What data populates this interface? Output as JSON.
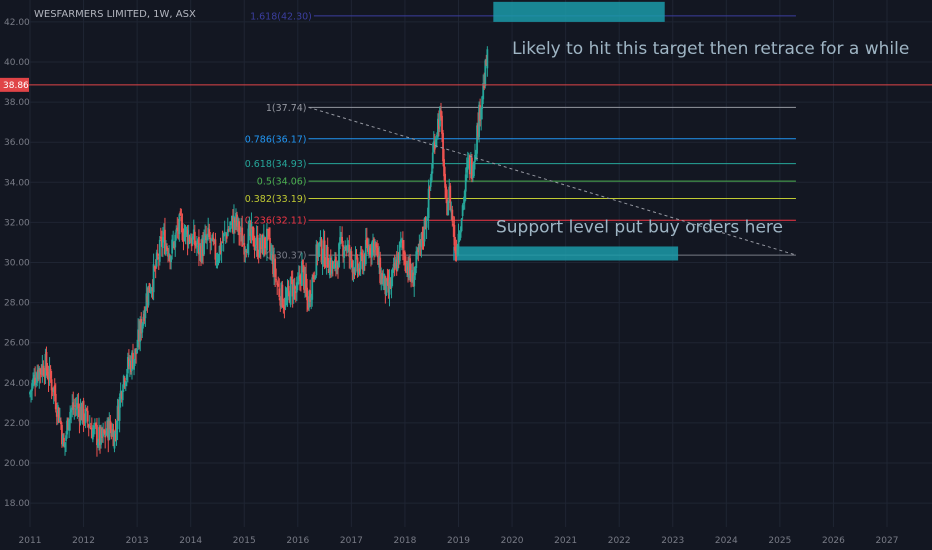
{
  "chart_data": {
    "type": "candlestick",
    "title": "WESFARMERS LIMITED, 1W, ASX",
    "y_range": [
      17.3,
      43.3
    ],
    "y_ticks": [
      "18.00",
      "20.00",
      "22.00",
      "24.00",
      "26.00",
      "28.00",
      "30.00",
      "32.00",
      "34.00",
      "36.00",
      "38.00",
      "40.00",
      "42.00"
    ],
    "x_range": [
      2011.0,
      2027.7
    ],
    "x_ticks": [
      "2011",
      "2012",
      "2013",
      "2014",
      "2015",
      "2016",
      "2017",
      "2018",
      "2019",
      "2020",
      "2021",
      "2022",
      "2023",
      "2024",
      "2025",
      "2026",
      "2027"
    ],
    "price_line": {
      "value": 38.86,
      "label": "38.86",
      "color": "#e04447"
    },
    "path": [
      [
        2011.0,
        23.4
      ],
      [
        2011.15,
        24.6
      ],
      [
        2011.3,
        24.9
      ],
      [
        2011.45,
        23.8
      ],
      [
        2011.6,
        21.9
      ],
      [
        2011.65,
        20.6
      ],
      [
        2011.75,
        22.6
      ],
      [
        2011.9,
        22.8
      ],
      [
        2012.05,
        22.3
      ],
      [
        2012.2,
        21.6
      ],
      [
        2012.35,
        21.1
      ],
      [
        2012.5,
        21.8
      ],
      [
        2012.6,
        21.4
      ],
      [
        2012.75,
        24.2
      ],
      [
        2012.85,
        24.8
      ],
      [
        2013.0,
        25.5
      ],
      [
        2013.2,
        28.4
      ],
      [
        2013.35,
        29.5
      ],
      [
        2013.5,
        31.2
      ],
      [
        2013.65,
        30.5
      ],
      [
        2013.8,
        31.8
      ],
      [
        2014.0,
        31.3
      ],
      [
        2014.2,
        30.6
      ],
      [
        2014.35,
        31.2
      ],
      [
        2014.5,
        30.3
      ],
      [
        2014.7,
        31.6
      ],
      [
        2014.85,
        32.1
      ],
      [
        2015.0,
        31.0
      ],
      [
        2015.15,
        31.3
      ],
      [
        2015.3,
        30.7
      ],
      [
        2015.45,
        31.1
      ],
      [
        2015.55,
        30.0
      ],
      [
        2015.65,
        28.7
      ],
      [
        2015.8,
        27.9
      ],
      [
        2015.9,
        28.9
      ],
      [
        2016.0,
        28.4
      ],
      [
        2016.1,
        29.8
      ],
      [
        2016.2,
        27.9
      ],
      [
        2016.3,
        29.3
      ],
      [
        2016.4,
        30.8
      ],
      [
        2016.55,
        30.3
      ],
      [
        2016.7,
        29.6
      ],
      [
        2016.8,
        30.6
      ],
      [
        2016.9,
        31.0
      ],
      [
        2017.0,
        30.2
      ],
      [
        2017.15,
        29.6
      ],
      [
        2017.3,
        30.6
      ],
      [
        2017.45,
        31.1
      ],
      [
        2017.55,
        29.5
      ],
      [
        2017.7,
        28.4
      ],
      [
        2017.8,
        29.3
      ],
      [
        2017.95,
        30.9
      ],
      [
        2018.05,
        30.0
      ],
      [
        2018.15,
        29.1
      ],
      [
        2018.3,
        30.6
      ],
      [
        2018.45,
        32.8
      ],
      [
        2018.52,
        34.8
      ],
      [
        2018.57,
        36.2
      ],
      [
        2018.62,
        36.8
      ],
      [
        2018.67,
        37.4
      ],
      [
        2018.73,
        35.5
      ],
      [
        2018.78,
        32.5
      ],
      [
        2018.84,
        33.5
      ],
      [
        2018.9,
        32.3
      ],
      [
        2018.96,
        30.6
      ],
      [
        2019.04,
        31.8
      ],
      [
        2019.12,
        33.3
      ],
      [
        2019.2,
        34.9
      ],
      [
        2019.28,
        34.8
      ],
      [
        2019.33,
        35.8
      ],
      [
        2019.4,
        37.2
      ],
      [
        2019.45,
        38.3
      ],
      [
        2019.5,
        39.0
      ],
      [
        2019.54,
        40.0
      ]
    ],
    "fib_levels": [
      {
        "ratio": "0",
        "value": 30.37,
        "label": "0(30.37)",
        "color": "#787b86"
      },
      {
        "ratio": "0.236",
        "value": 32.11,
        "label": "0.236(32.11)",
        "color": "#f23645"
      },
      {
        "ratio": "0.382",
        "value": 33.19,
        "label": "0.382(33.19)",
        "color": "#c0ca33"
      },
      {
        "ratio": "0.5",
        "value": 34.06,
        "label": "0.5(34.06)",
        "color": "#4caf50"
      },
      {
        "ratio": "0.618",
        "value": 34.93,
        "label": "0.618(34.93)",
        "color": "#26a69a"
      },
      {
        "ratio": "0.786",
        "value": 36.17,
        "label": "0.786(36.17)",
        "color": "#2196f3"
      },
      {
        "ratio": "1",
        "value": 37.74,
        "label": "1(37.74)",
        "color": "#9598a1"
      },
      {
        "ratio": "1.618",
        "value": 42.3,
        "label": "1.618(42.30)",
        "color": "#3b3e9e"
      }
    ],
    "fib_x_range": [
      2016.2,
      2030.0
    ],
    "trendline": {
      "from": [
        2016.2,
        37.74
      ],
      "to": [
        2030.0,
        30.37
      ],
      "color": "#9598a1",
      "style": "dashed"
    },
    "zones": [
      {
        "name": "target",
        "x": [
          2019.65,
          2022.85
        ],
        "y": [
          42.0,
          43.0
        ],
        "color": "#1b9aa8"
      },
      {
        "name": "support",
        "x": [
          2018.9,
          2023.1
        ],
        "y": [
          30.1,
          30.8
        ],
        "color": "#1b9aa8"
      }
    ],
    "annotations": [
      {
        "text": "Likely to hit this target then retrace for a while",
        "x": 2020.0,
        "y": 40.4
      },
      {
        "text": "Support level put buy orders here",
        "x": 2019.7,
        "y": 31.5
      }
    ],
    "colors": {
      "up": "#26a69a",
      "down": "#ef5350",
      "background": "#131722",
      "grid": "#1f2533",
      "axis_text": "#787b86",
      "annotation": "#9fb5c4"
    }
  }
}
